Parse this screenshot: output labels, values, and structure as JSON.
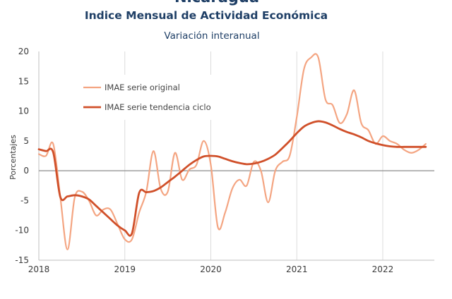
{
  "chart_data": {
    "type": "line",
    "title_top": "Nicaragua",
    "title": "Indice Mensual de  Actividad Económica",
    "subtitle": "Variación interanual",
    "ylabel": "Porcentajes",
    "xlabel": "",
    "ylim": [
      -15,
      20
    ],
    "yticks": [
      20,
      15,
      10,
      5,
      0,
      -5,
      -10,
      -15
    ],
    "xlim": [
      2018,
      2022.6
    ],
    "xticks": [
      2018,
      2019,
      2020,
      2021,
      2022
    ],
    "grid": "vertical",
    "legend_position": "top-left",
    "series": [
      {
        "name": "IMAE serie original",
        "color": "#f4a582",
        "x": [
          2018.0,
          2018.083,
          2018.167,
          2018.25,
          2018.333,
          2018.417,
          2018.5,
          2018.583,
          2018.667,
          2018.75,
          2018.833,
          2018.917,
          2019.0,
          2019.083,
          2019.167,
          2019.25,
          2019.333,
          2019.417,
          2019.5,
          2019.583,
          2019.667,
          2019.75,
          2019.833,
          2019.917,
          2020.0,
          2020.083,
          2020.167,
          2020.25,
          2020.333,
          2020.417,
          2020.5,
          2020.583,
          2020.667,
          2020.75,
          2020.833,
          2020.917,
          2021.0,
          2021.083,
          2021.167,
          2021.25,
          2021.333,
          2021.417,
          2021.5,
          2021.583,
          2021.667,
          2021.75,
          2021.833,
          2021.917,
          2022.0,
          2022.083,
          2022.167,
          2022.25,
          2022.333,
          2022.417,
          2022.5
        ],
        "y": [
          2.8,
          2.5,
          4.5,
          -4.5,
          -13.2,
          -4.5,
          -3.5,
          -5.0,
          -7.5,
          -6.5,
          -6.5,
          -9.0,
          -11.5,
          -11.5,
          -7.0,
          -3.5,
          3.3,
          -3.0,
          -3.5,
          3.0,
          -1.5,
          0.2,
          1.0,
          5.0,
          1.0,
          -9.5,
          -7.0,
          -3.0,
          -1.5,
          -2.5,
          1.5,
          0.0,
          -5.3,
          0.0,
          1.5,
          2.5,
          9.0,
          17.0,
          19.0,
          19.0,
          12.0,
          11.0,
          8.0,
          9.5,
          13.5,
          8.0,
          6.8,
          4.5,
          5.8,
          5.0,
          4.5,
          3.5,
          3.0,
          3.5,
          4.5
        ]
      },
      {
        "name": "IMAE serie  tendencia ciclo",
        "color": "#d0502a",
        "x": [
          2018.0,
          2018.083,
          2018.167,
          2018.25,
          2018.333,
          2018.417,
          2018.5,
          2018.583,
          2018.667,
          2018.75,
          2018.833,
          2018.917,
          2019.0,
          2019.083,
          2019.167,
          2019.25,
          2019.333,
          2019.417,
          2019.5,
          2019.583,
          2019.667,
          2019.75,
          2019.833,
          2019.917,
          2020.0,
          2020.083,
          2020.167,
          2020.25,
          2020.333,
          2020.417,
          2020.5,
          2020.583,
          2020.667,
          2020.75,
          2020.833,
          2020.917,
          2021.0,
          2021.083,
          2021.167,
          2021.25,
          2021.333,
          2021.417,
          2021.5,
          2021.583,
          2021.667,
          2021.75,
          2021.833,
          2021.917,
          2022.0,
          2022.083,
          2022.167,
          2022.25,
          2022.333,
          2022.417,
          2022.5
        ],
        "y": [
          3.6,
          3.3,
          3.1,
          -4.4,
          -4.3,
          -4.1,
          -4.3,
          -4.8,
          -5.9,
          -7.0,
          -8.1,
          -9.2,
          -10.0,
          -10.5,
          -3.7,
          -3.6,
          -3.4,
          -2.8,
          -1.9,
          -1.0,
          0.0,
          1.0,
          1.8,
          2.4,
          2.5,
          2.4,
          2.0,
          1.6,
          1.3,
          1.1,
          1.2,
          1.5,
          2.0,
          2.7,
          3.8,
          5.0,
          6.3,
          7.4,
          8.0,
          8.3,
          8.1,
          7.6,
          7.0,
          6.5,
          6.1,
          5.6,
          5.0,
          4.6,
          4.3,
          4.1,
          4.0,
          4.0,
          4.0,
          4.0,
          4.0
        ]
      }
    ]
  }
}
